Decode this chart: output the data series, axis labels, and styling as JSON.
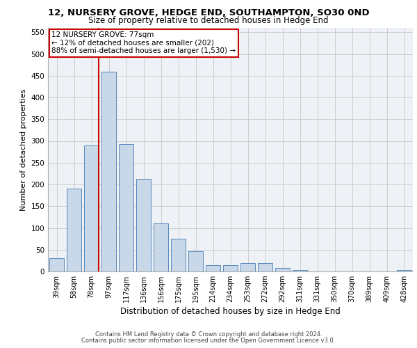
{
  "title": "12, NURSERY GROVE, HEDGE END, SOUTHAMPTON, SO30 0ND",
  "subtitle": "Size of property relative to detached houses in Hedge End",
  "xlabel": "Distribution of detached houses by size in Hedge End",
  "ylabel": "Number of detached properties",
  "bar_labels": [
    "39sqm",
    "58sqm",
    "78sqm",
    "97sqm",
    "117sqm",
    "136sqm",
    "156sqm",
    "175sqm",
    "195sqm",
    "214sqm",
    "234sqm",
    "253sqm",
    "272sqm",
    "292sqm",
    "311sqm",
    "331sqm",
    "350sqm",
    "370sqm",
    "389sqm",
    "409sqm",
    "428sqm"
  ],
  "bar_values": [
    30,
    190,
    290,
    460,
    293,
    213,
    110,
    75,
    47,
    14,
    14,
    20,
    20,
    8,
    4,
    0,
    0,
    0,
    0,
    0,
    4
  ],
  "bar_color": "#c8d8e8",
  "bar_edge_color": "#5588bb",
  "property_line_label": "12 NURSERY GROVE: 77sqm",
  "annotation_line1": "← 12% of detached houses are smaller (202)",
  "annotation_line2": "88% of semi-detached houses are larger (1,530) →",
  "annotation_box_color": "#ffffff",
  "annotation_box_edge_color": "#cc0000",
  "vline_color": "#cc0000",
  "vline_x": 2.43,
  "ylim": [
    0,
    560
  ],
  "yticks": [
    0,
    50,
    100,
    150,
    200,
    250,
    300,
    350,
    400,
    450,
    500,
    550
  ],
  "footer_line1": "Contains HM Land Registry data © Crown copyright and database right 2024.",
  "footer_line2": "Contains public sector information licensed under the Open Government Licence v3.0.",
  "plot_bg_color": "#eef2f7"
}
